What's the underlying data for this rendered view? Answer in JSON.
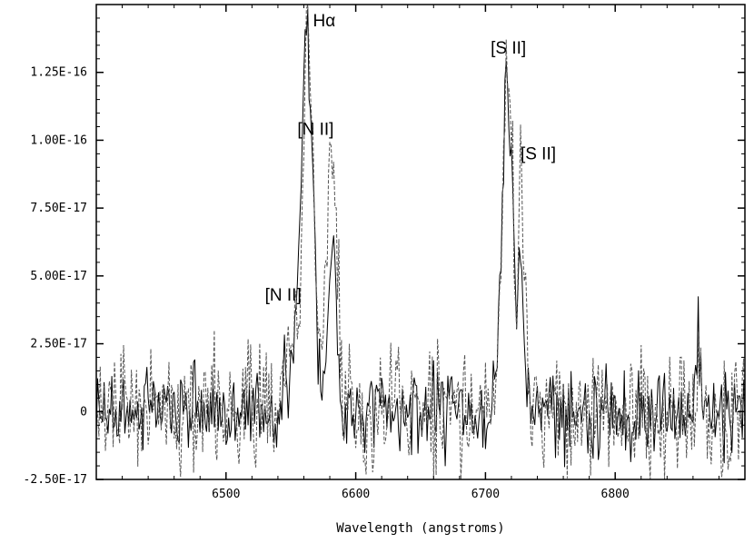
{
  "chart_data": {
    "type": "line",
    "title": "",
    "xlabel": "Wavelength (angstroms)",
    "ylabel": "",
    "xlim": [
      6400,
      6900
    ],
    "ylim": [
      -2.5e-17,
      1.5e-16
    ],
    "grid": false,
    "x_ticks": [
      {
        "value": 6500,
        "label": "6500"
      },
      {
        "value": 6600,
        "label": "6600"
      },
      {
        "value": 6700,
        "label": "6700"
      },
      {
        "value": 6800,
        "label": "6800"
      }
    ],
    "y_ticks": [
      {
        "value": -2.5e-17,
        "label": "-2.50E-17"
      },
      {
        "value": 0,
        "label": "0"
      },
      {
        "value": 2.5e-17,
        "label": "2.50E-17"
      },
      {
        "value": 5e-17,
        "label": "5.00E-17"
      },
      {
        "value": 7.5e-17,
        "label": "7.50E-17"
      },
      {
        "value": 1e-16,
        "label": "1.00E-16"
      },
      {
        "value": 1.25e-16,
        "label": "1.25E-16"
      }
    ],
    "series": [
      {
        "style": "solid",
        "noise": 8e-18,
        "x": [
          6400,
          6540,
          6548,
          6552,
          6556,
          6560,
          6563,
          6566,
          6570,
          6574,
          6578,
          6582,
          6586,
          6590,
          6600,
          6700,
          6708,
          6712,
          6716,
          6720,
          6724,
          6727,
          6730,
          6734,
          6740,
          6750,
          6860,
          6864,
          6868,
          6900
        ],
        "y": [
          0,
          0,
          1.4e-17,
          2.2e-17,
          6e-17,
          1.2e-16,
          1.49e-16,
          1.05e-16,
          3e-17,
          1e-17,
          3e-17,
          6.8e-17,
          3e-17,
          0,
          0,
          0,
          1e-17,
          5.5e-17,
          1.3e-16,
          1.05e-16,
          3e-17,
          6.5e-17,
          3e-17,
          0,
          0,
          0,
          0,
          3.4e-17,
          0,
          0
        ]
      },
      {
        "style": "dashed",
        "noise": 1.1e-17,
        "x": [
          6400,
          6540,
          6548,
          6552,
          6556,
          6560,
          6563,
          6566,
          6570,
          6574,
          6578,
          6582,
          6586,
          6590,
          6600,
          6700,
          6708,
          6712,
          6716,
          6720,
          6724,
          6727,
          6730,
          6734,
          6740,
          6750,
          6860,
          6864,
          6868,
          6900
        ],
        "y": [
          0,
          0,
          2.2e-17,
          3.9e-17,
          3e-17,
          1e-16,
          1.44e-16,
          1.1e-16,
          3e-17,
          2e-17,
          7e-17,
          1.02e-16,
          6e-17,
          0,
          0,
          0,
          1.2e-17,
          5e-17,
          1.22e-16,
          1.15e-16,
          2.5e-17,
          9e-17,
          5e-17,
          0,
          0,
          0,
          0,
          2e-17,
          0,
          0
        ]
      }
    ],
    "annotations": [
      {
        "text": "Hα",
        "x": 6567,
        "y": 1.42e-16
      },
      {
        "text": "[N II]",
        "x": 6555,
        "y": 1.02e-16
      },
      {
        "text": "[N II]",
        "x": 6530,
        "y": 4.1e-17
      },
      {
        "text": "[S II]",
        "x": 6704,
        "y": 1.32e-16
      },
      {
        "text": "[S II]",
        "x": 6727,
        "y": 9.3e-17
      }
    ]
  }
}
